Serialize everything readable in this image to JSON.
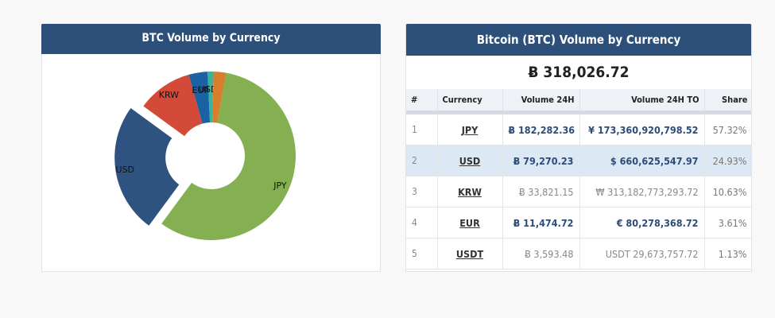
{
  "left_panel": {
    "title": "BTC Volume by Currency"
  },
  "right_panel": {
    "title": "Bitcoin (BTC) Volume by Currency",
    "total": "Ƀ 318,026.72",
    "columns": [
      "#",
      "Currency",
      "Volume 24H",
      "Volume 24H TO",
      "Share"
    ],
    "rows": [
      {
        "rank": "1",
        "currency": "JPY",
        "volume": "Ƀ 182,282.36",
        "volume_to": "¥ 173,360,920,798.52",
        "share": "57.32%"
      },
      {
        "rank": "2",
        "currency": "USD",
        "volume": "Ƀ 79,270.23",
        "volume_to": "$ 660,625,547.97",
        "share": "24.93%"
      },
      {
        "rank": "3",
        "currency": "KRW",
        "volume": "Ƀ 33,821.15",
        "volume_to": "₩ 313,182,773,293.72",
        "share": "10.63%"
      },
      {
        "rank": "4",
        "currency": "EUR",
        "volume": "Ƀ 11,474.72",
        "volume_to": "€ 80,278,368.72",
        "share": "3.61%"
      },
      {
        "rank": "5",
        "currency": "USDT",
        "volume": "Ƀ 3,593.48",
        "volume_to": "USDT 29,673,757.72",
        "share": "1.13%"
      }
    ]
  },
  "chart_data": {
    "type": "pie",
    "slices": [
      {
        "label": "JPY",
        "value": 57.32,
        "color": "#84b051"
      },
      {
        "label": "USD",
        "value": 24.93,
        "color": "#2f5380"
      },
      {
        "label": "KRW",
        "value": 10.63,
        "color": "#d34a39"
      },
      {
        "label": "EUR",
        "value": 3.61,
        "color": "#1a62a3"
      },
      {
        "label": "USDT",
        "value": 1.13,
        "color": "#3bb29a"
      },
      {
        "label": "",
        "value": 2.38,
        "color": "#d77e2c"
      }
    ],
    "exploded": "USD"
  }
}
